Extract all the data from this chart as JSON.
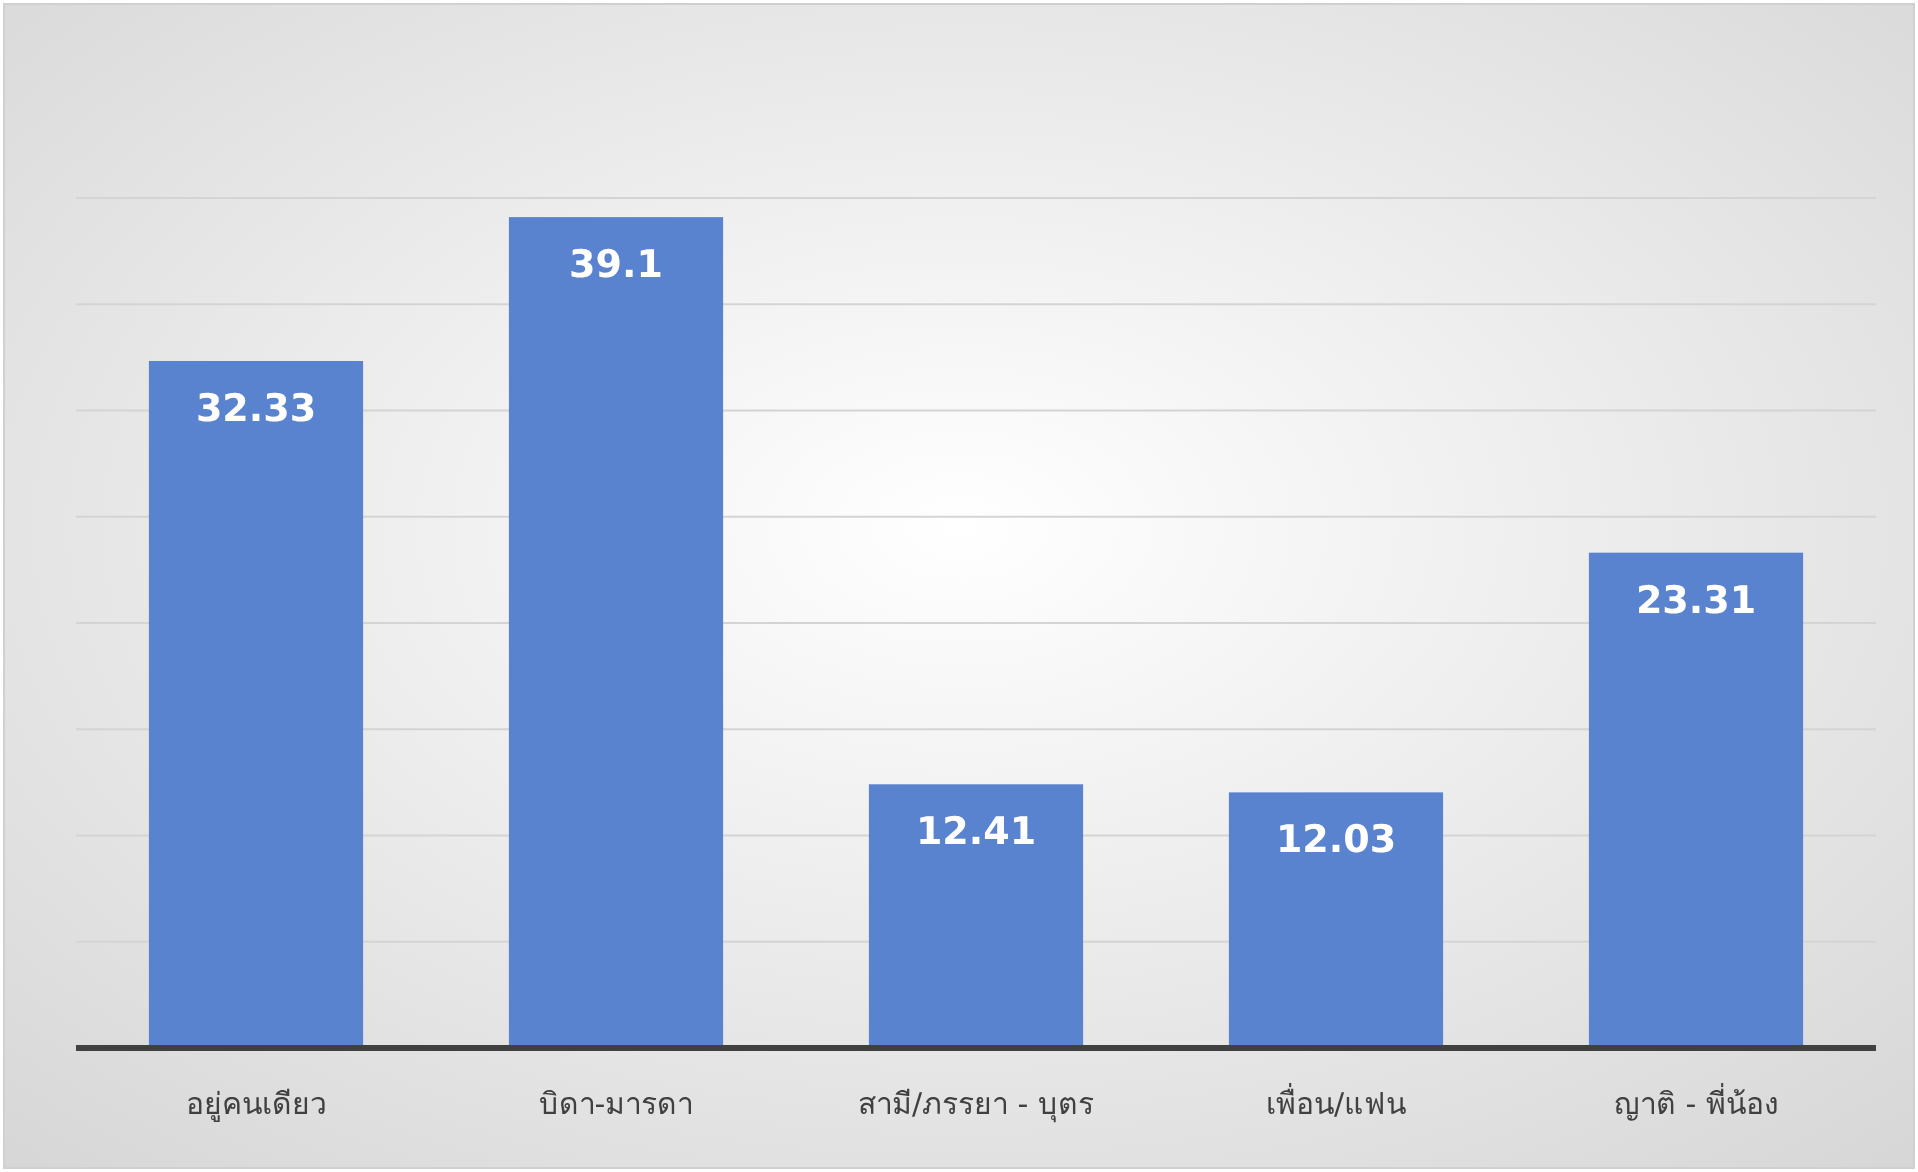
{
  "chart_data": {
    "type": "bar",
    "categories": [
      "อยู่คนเดียว",
      "บิดา-มารดา",
      "สามี/ภรรยา - บุตร",
      "เพื่อน/แฟน",
      "ญาติ - พี่น้อง"
    ],
    "values": [
      32.33,
      39.1,
      12.41,
      12.03,
      23.31
    ],
    "color": "#5a83cf",
    "ylim": [
      0,
      40
    ],
    "yticks": [
      {
        "value": 0,
        "label": null
      },
      {
        "value": 5,
        "label": null
      },
      {
        "value": 10,
        "label": null
      },
      {
        "value": 15,
        "label": null
      },
      {
        "value": 20,
        "label": null
      },
      {
        "value": 25,
        "label": null
      },
      {
        "value": 30,
        "label": null
      },
      {
        "value": 35,
        "label": null
      },
      {
        "value": 40,
        "label": null
      }
    ],
    "grid": "y",
    "data_labels": true
  }
}
